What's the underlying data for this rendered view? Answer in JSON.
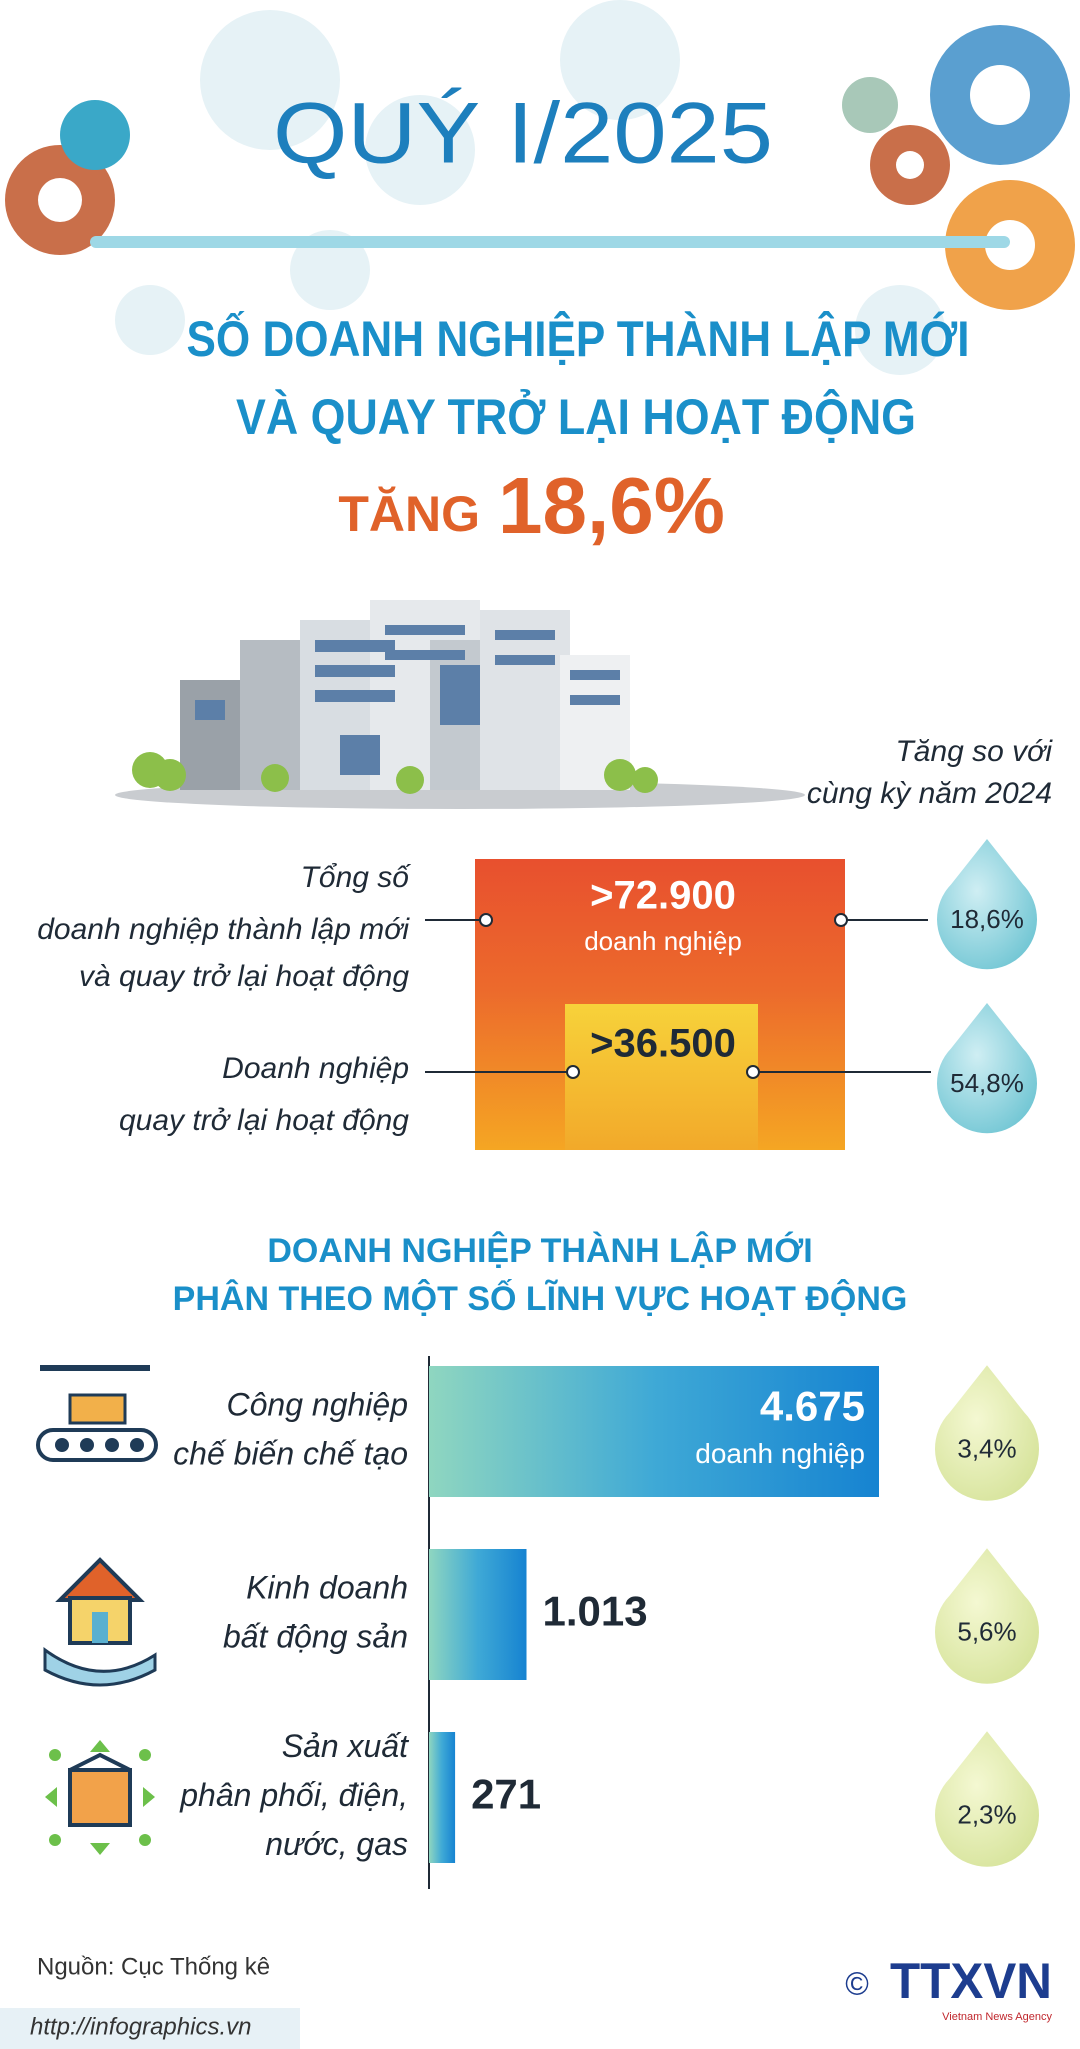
{
  "header": {
    "period": "QUÝ I/2025",
    "title_lines": [
      "SỐ DOANH NGHIỆP THÀNH LẬP MỚI",
      "VÀ QUAY TRỞ LẠI HOẠT ĐỘNG"
    ],
    "increase_word": "TĂNG",
    "increase_value": "18,6%"
  },
  "summary": {
    "comparison_lines": [
      "Tăng so với",
      "cùng kỳ năm 2024"
    ],
    "items": [
      {
        "label_lines": [
          "Tổng số",
          "doanh nghiệp thành lập mới",
          "và quay trở lại hoạt động"
        ],
        "value": ">72.900",
        "unit": "doanh nghiệp",
        "change": "18,6%"
      },
      {
        "label_lines": [
          "Doanh nghiệp",
          "quay trở lại hoạt động"
        ],
        "value": ">36.500",
        "change": "54,8%"
      }
    ]
  },
  "sectors": {
    "title_lines": [
      "DOANH NGHIỆP THÀNH LẬP MỚI",
      "PHÂN THEO MỘT SỐ LĨNH VỰC HOẠT ĐỘNG"
    ],
    "items": [
      {
        "name_lines": [
          "Công nghiệp",
          "chế biến chế tạo"
        ],
        "value": 4675,
        "value_label": "4.675",
        "unit": "doanh nghiệp",
        "change": "3,4%"
      },
      {
        "name_lines": [
          "Kinh doanh",
          "bất động sản"
        ],
        "value": 1013,
        "value_label": "1.013",
        "change": "5,6%"
      },
      {
        "name_lines": [
          "Sản xuất",
          "phân phối, điện,",
          "nước, gas"
        ],
        "value": 271,
        "value_label": "271",
        "change": "2,3%"
      }
    ]
  },
  "footer": {
    "source": "Nguồn: Cục Thống kê",
    "url": "http://infographics.vn",
    "copyright": "©",
    "logo": "TTXVN",
    "logo_subtitle": "Vietnam News Agency"
  }
}
